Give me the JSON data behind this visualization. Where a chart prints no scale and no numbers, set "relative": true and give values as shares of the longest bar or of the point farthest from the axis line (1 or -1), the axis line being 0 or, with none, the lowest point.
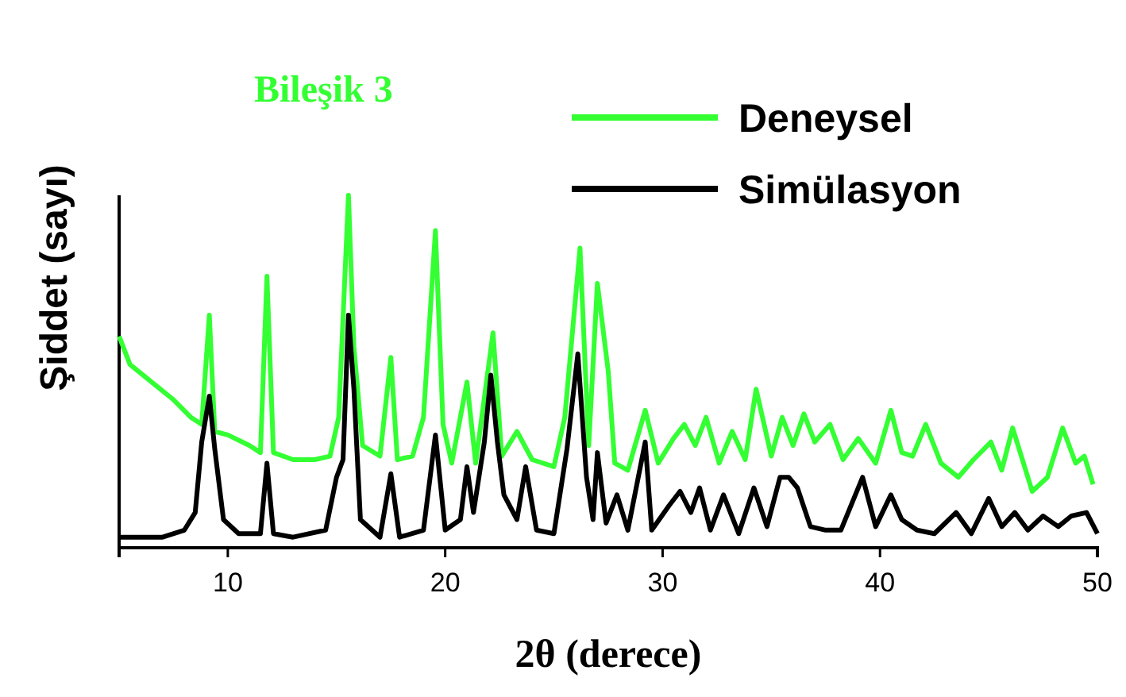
{
  "chart_data": {
    "type": "line",
    "title": "Bileşik 3",
    "xlabel": "2θ (derece)",
    "ylabel": "Şiddet (sayı)",
    "relative": true,
    "xlim": [
      5,
      50
    ],
    "xticks": [
      10,
      20,
      30,
      40,
      50
    ],
    "legend": "top right",
    "grid": false,
    "series": [
      {
        "name": "Deneysel",
        "color": "#33ff33",
        "x": [
          5,
          5.5,
          6.5,
          7.5,
          8.3,
          8.8,
          9.15,
          9.4,
          10,
          11,
          11.5,
          11.8,
          12.1,
          13,
          14,
          14.7,
          15.1,
          15.55,
          15.8,
          16.2,
          17,
          17.5,
          17.8,
          18.5,
          19,
          19.55,
          19.9,
          20.3,
          21,
          21.4,
          22.2,
          22.6,
          23.3,
          24,
          25,
          25.5,
          26.2,
          26.6,
          27,
          27.5,
          27.8,
          28.4,
          29.2,
          29.8,
          30.5,
          31,
          31.5,
          32,
          32.6,
          33.2,
          33.8,
          34.3,
          35,
          35.5,
          36,
          36.5,
          37,
          37.7,
          38.3,
          39,
          39.8,
          40.5,
          41,
          41.5,
          42.1,
          42.8,
          43.6,
          44.3,
          45.1,
          45.6,
          46.1,
          47,
          47.7,
          48.4,
          49,
          49.4,
          49.8
        ],
        "values": [
          0.6,
          0.52,
          0.47,
          0.42,
          0.37,
          0.35,
          0.66,
          0.33,
          0.32,
          0.29,
          0.27,
          0.77,
          0.27,
          0.25,
          0.25,
          0.26,
          0.37,
          1,
          0.57,
          0.29,
          0.26,
          0.54,
          0.25,
          0.26,
          0.37,
          0.9,
          0.35,
          0.24,
          0.47,
          0.24,
          0.61,
          0.26,
          0.33,
          0.25,
          0.23,
          0.37,
          0.85,
          0.29,
          0.75,
          0.5,
          0.24,
          0.22,
          0.39,
          0.24,
          0.31,
          0.35,
          0.29,
          0.37,
          0.24,
          0.33,
          0.25,
          0.45,
          0.26,
          0.37,
          0.29,
          0.38,
          0.3,
          0.35,
          0.25,
          0.31,
          0.24,
          0.39,
          0.27,
          0.26,
          0.35,
          0.24,
          0.2,
          0.25,
          0.3,
          0.22,
          0.34,
          0.16,
          0.2,
          0.34,
          0.24,
          0.26,
          0.18
        ]
      },
      {
        "name": "Simülasyon",
        "color": "#000000",
        "x": [
          5,
          7,
          8,
          8.5,
          8.8,
          9.15,
          9.4,
          9.8,
          10.5,
          11.5,
          11.8,
          12.1,
          13,
          14.5,
          15,
          15.3,
          15.55,
          15.8,
          16.1,
          17,
          17.5,
          17.9,
          19,
          19.55,
          20,
          20.7,
          21,
          21.3,
          21.8,
          22.1,
          22.4,
          22.7,
          23.3,
          23.7,
          24.2,
          25,
          25.6,
          26.1,
          26.5,
          26.8,
          27,
          27.4,
          27.9,
          28.4,
          29.2,
          29.5,
          30.3,
          30.8,
          31.3,
          31.7,
          32.2,
          32.8,
          33.5,
          34.2,
          34.8,
          35.4,
          35.8,
          36.2,
          36.8,
          37.5,
          38.2,
          39.2,
          39.8,
          40.5,
          41,
          41.7,
          42.5,
          43.5,
          44.2,
          45,
          45.6,
          46.2,
          46.8,
          47.5,
          48.2,
          48.8,
          49.5,
          50
        ],
        "values": [
          0.03,
          0.03,
          0.05,
          0.1,
          0.3,
          0.43,
          0.28,
          0.08,
          0.04,
          0.04,
          0.24,
          0.04,
          0.03,
          0.05,
          0.2,
          0.25,
          0.66,
          0.45,
          0.08,
          0.03,
          0.21,
          0.03,
          0.05,
          0.32,
          0.05,
          0.08,
          0.23,
          0.1,
          0.3,
          0.49,
          0.3,
          0.15,
          0.08,
          0.23,
          0.05,
          0.04,
          0.28,
          0.55,
          0.2,
          0.08,
          0.27,
          0.07,
          0.15,
          0.05,
          0.3,
          0.05,
          0.12,
          0.16,
          0.1,
          0.17,
          0.05,
          0.15,
          0.04,
          0.17,
          0.06,
          0.2,
          0.2,
          0.17,
          0.06,
          0.05,
          0.05,
          0.2,
          0.06,
          0.15,
          0.08,
          0.05,
          0.04,
          0.1,
          0.04,
          0.14,
          0.06,
          0.1,
          0.05,
          0.09,
          0.06,
          0.09,
          0.1,
          0.04
        ]
      }
    ]
  }
}
